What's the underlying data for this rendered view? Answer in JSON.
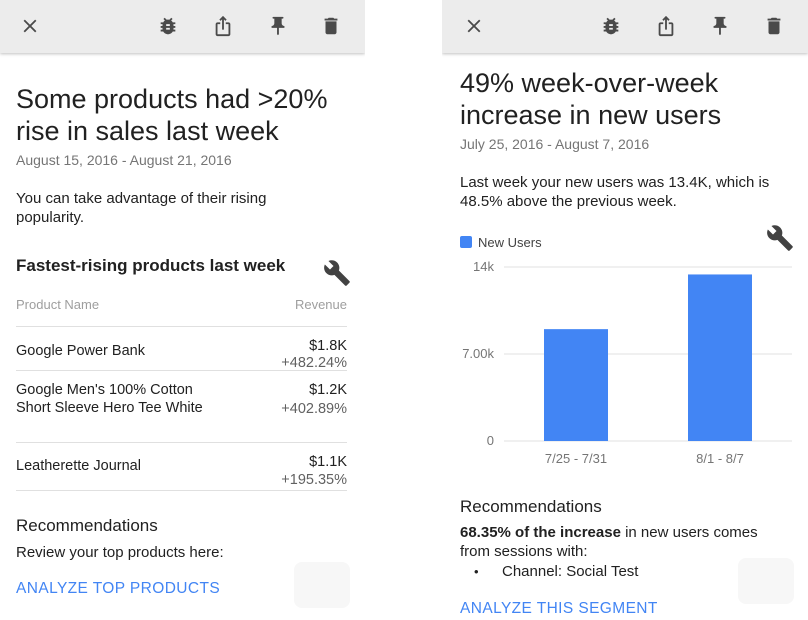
{
  "left_card": {
    "title": "Some products had >20% rise in sales last week",
    "date_range": "August 15, 2016 - August 21, 2016",
    "description": "You can take advantage of their rising popularity.",
    "section_title": "Fastest-rising products last week",
    "table": {
      "columns": [
        "Product Name",
        "Revenue"
      ],
      "rows": [
        {
          "name": "Google Power Bank",
          "revenue": "$1.8K",
          "change": "+482.24%"
        },
        {
          "name": "Google Men's 100% Cotton Short Sleeve Hero Tee White",
          "revenue": "$1.2K",
          "change": "+402.89%"
        },
        {
          "name": "Leatherette Journal",
          "revenue": "$1.1K",
          "change": "+195.35%"
        }
      ]
    },
    "recommendations_title": "Recommendations",
    "recommendations_text": "Review your top products here:",
    "action_label": "ANALYZE TOP PRODUCTS"
  },
  "right_card": {
    "title": "49% week-over-week increase in new users",
    "date_range": "July 25, 2016 - August 7, 2016",
    "description": "Last week your new users was 13.4K, which is 48.5% above the previous week.",
    "recommendations_title": "Recommendations",
    "recommendations_bold": "68.35% of the increase",
    "recommendations_text": " in new users comes from sessions with:",
    "bullet_items": [
      "Channel: Social Test"
    ],
    "action_label": "ANALYZE THIS SEGMENT"
  },
  "toolbar_icons": [
    "close-icon",
    "bug-icon",
    "share-icon",
    "pin-icon",
    "delete-icon"
  ],
  "colors": {
    "accent": "#4285f4",
    "bar": "#4285f4",
    "toolbar_bg": "#ececec"
  },
  "chart_data": {
    "type": "bar",
    "categories": [
      "7/25 - 7/31",
      "8/1 - 8/7"
    ],
    "series": [
      {
        "name": "New Users",
        "values": [
          9000,
          13400
        ]
      }
    ],
    "yticks": [
      "14k",
      "7.00k",
      "0"
    ],
    "ytick_values": [
      14000,
      7000,
      0
    ],
    "ylim": [
      0,
      14000
    ],
    "legend": "top-left",
    "grid": true
  }
}
